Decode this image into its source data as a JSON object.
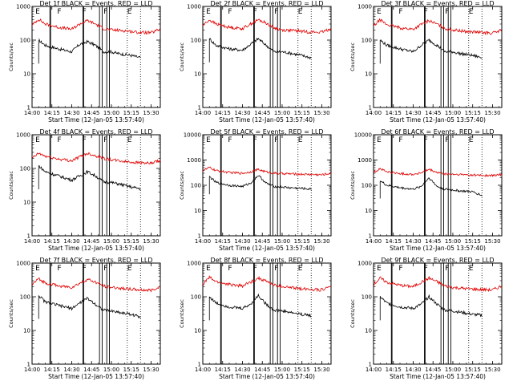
{
  "figure": {
    "xlabel": "Start Time (12-Jan-05 13:57:40)",
    "ylabel": "Counts/sec",
    "colors": {
      "events": "#000000",
      "lld": "#e00000"
    }
  },
  "chart_data": [
    {
      "type": "line",
      "title": "Det 1f BLACK = Events, RED = LLD",
      "ylim": [
        1,
        1000
      ],
      "yscale": "log",
      "yticks": [
        1,
        10,
        100,
        1000
      ],
      "ytick_labels": [
        "1",
        "10",
        "100",
        "1000"
      ],
      "xlim": [
        "14:00",
        "15:37"
      ],
      "xticks": [
        "14:00",
        "14:15",
        "14:30",
        "14:45",
        "15:00",
        "15:15",
        "15:30"
      ],
      "markers": [
        "E",
        "F",
        "F",
        "F",
        "E"
      ],
      "series": [
        {
          "color": "#000000",
          "x": [
            "14:05",
            "14:10",
            "14:20",
            "14:30",
            "14:36",
            "14:42",
            "14:48",
            "14:54",
            "15:00",
            "15:05",
            "15:15",
            "15:22"
          ],
          "values": [
            100,
            70,
            55,
            45,
            75,
            90,
            70,
            45,
            45,
            40,
            35,
            30
          ]
        },
        {
          "color": "#e00000",
          "x": [
            "14:00",
            "14:05",
            "14:10",
            "14:20",
            "14:30",
            "14:36",
            "14:42",
            "14:48",
            "14:54",
            "15:00",
            "15:10",
            "15:20",
            "15:30",
            "15:37"
          ],
          "values": [
            280,
            420,
            300,
            240,
            210,
            300,
            380,
            300,
            220,
            200,
            190,
            170,
            165,
            210
          ]
        }
      ]
    },
    {
      "type": "line",
      "title": "Det 2f BLACK = Events, RED = LLD",
      "ylim": [
        1,
        1000
      ],
      "yscale": "log",
      "yticks": [
        1,
        10,
        100,
        1000
      ],
      "ytick_labels": [
        "1",
        "10",
        "100",
        "1000"
      ],
      "xlim": [
        "14:00",
        "15:37"
      ],
      "xticks": [
        "14:00",
        "14:15",
        "14:30",
        "14:45",
        "15:00",
        "15:15",
        "15:30"
      ],
      "markers": [
        "E",
        "F",
        "F",
        "F",
        "E"
      ],
      "series": [
        {
          "color": "#000000",
          "x": [
            "14:05",
            "14:10",
            "14:20",
            "14:30",
            "14:36",
            "14:42",
            "14:48",
            "14:54",
            "15:00",
            "15:05",
            "15:15",
            "15:22"
          ],
          "values": [
            110,
            70,
            55,
            50,
            75,
            110,
            70,
            45,
            45,
            42,
            35,
            30
          ]
        },
        {
          "color": "#e00000",
          "x": [
            "14:00",
            "14:05",
            "14:10",
            "14:20",
            "14:30",
            "14:36",
            "14:42",
            "14:48",
            "14:54",
            "15:00",
            "15:10",
            "15:20",
            "15:30",
            "15:37"
          ],
          "values": [
            270,
            400,
            300,
            240,
            220,
            300,
            400,
            320,
            230,
            200,
            190,
            175,
            170,
            220
          ]
        }
      ]
    },
    {
      "type": "line",
      "title": "Det 3f BLACK = Events, RED = LLD",
      "ylim": [
        1,
        1000
      ],
      "yscale": "log",
      "yticks": [
        1,
        10,
        100,
        1000
      ],
      "ytick_labels": [
        "1",
        "10",
        "100",
        "1000"
      ],
      "xlim": [
        "14:00",
        "15:37"
      ],
      "xticks": [
        "14:00",
        "14:15",
        "14:30",
        "14:45",
        "15:00",
        "15:15",
        "15:30"
      ],
      "markers": [
        "E",
        "F",
        "F",
        "F",
        "E"
      ],
      "series": [
        {
          "color": "#000000",
          "x": [
            "14:05",
            "14:10",
            "14:20",
            "14:30",
            "14:36",
            "14:42",
            "14:48",
            "14:54",
            "15:00",
            "15:05",
            "15:15",
            "15:22"
          ],
          "values": [
            100,
            70,
            55,
            45,
            70,
            100,
            70,
            45,
            45,
            40,
            35,
            30
          ]
        },
        {
          "color": "#e00000",
          "x": [
            "14:00",
            "14:05",
            "14:10",
            "14:20",
            "14:30",
            "14:36",
            "14:42",
            "14:48",
            "14:54",
            "15:00",
            "15:10",
            "15:20",
            "15:30",
            "15:37"
          ],
          "values": [
            260,
            400,
            290,
            230,
            210,
            290,
            380,
            300,
            220,
            200,
            180,
            170,
            160,
            200
          ]
        }
      ]
    },
    {
      "type": "line",
      "title": "Det 4f BLACK = Events, RED = LLD",
      "ylim": [
        1,
        1000
      ],
      "yscale": "log",
      "yticks": [
        1,
        10,
        100,
        1000
      ],
      "ytick_labels": [
        "1",
        "10",
        "100",
        "1000"
      ],
      "xlim": [
        "14:00",
        "15:37"
      ],
      "xticks": [
        "14:00",
        "14:15",
        "14:30",
        "14:45",
        "15:00",
        "15:15",
        "15:30"
      ],
      "markers": [
        "E",
        "F",
        "F",
        "F",
        "E"
      ],
      "series": [
        {
          "color": "#000000",
          "x": [
            "14:05",
            "14:10",
            "14:20",
            "14:30",
            "14:36",
            "14:42",
            "14:48",
            "14:54",
            "15:00",
            "15:05",
            "15:15",
            "15:22"
          ],
          "values": [
            120,
            80,
            60,
            45,
            60,
            80,
            60,
            40,
            38,
            35,
            28,
            25
          ]
        },
        {
          "color": "#e00000",
          "x": [
            "14:00",
            "14:05",
            "14:10",
            "14:20",
            "14:30",
            "14:36",
            "14:42",
            "14:48",
            "14:54",
            "15:00",
            "15:10",
            "15:20",
            "15:30",
            "15:37"
          ],
          "values": [
            200,
            280,
            230,
            190,
            170,
            220,
            280,
            240,
            200,
            180,
            160,
            150,
            140,
            170
          ]
        }
      ]
    },
    {
      "type": "line",
      "title": "Det 5f BLACK = Events, RED = LLD",
      "ylim": [
        1,
        10000
      ],
      "yscale": "log",
      "yticks": [
        1,
        10,
        100,
        1000,
        10000
      ],
      "ytick_labels": [
        "1",
        "10",
        "100",
        "1000",
        "10000"
      ],
      "xlim": [
        "14:00",
        "15:37"
      ],
      "xticks": [
        "14:00",
        "14:15",
        "14:30",
        "14:45",
        "15:00",
        "15:15",
        "15:30"
      ],
      "markers": [
        "E",
        "F",
        "F",
        "F",
        "E"
      ],
      "series": [
        {
          "color": "#000000",
          "x": [
            "14:05",
            "14:10",
            "14:20",
            "14:30",
            "14:36",
            "14:42",
            "14:48",
            "14:54",
            "15:00",
            "15:05",
            "15:15",
            "15:22"
          ],
          "values": [
            220,
            130,
            100,
            90,
            120,
            250,
            120,
            90,
            85,
            80,
            75,
            70
          ]
        },
        {
          "color": "#e00000",
          "x": [
            "14:00",
            "14:05",
            "14:10",
            "14:20",
            "14:30",
            "14:36",
            "14:42",
            "14:48",
            "14:54",
            "15:00",
            "15:10",
            "15:20",
            "15:30",
            "15:37"
          ],
          "values": [
            380,
            500,
            380,
            320,
            300,
            340,
            420,
            340,
            300,
            290,
            280,
            270,
            260,
            300
          ]
        }
      ]
    },
    {
      "type": "line",
      "title": "Det 6f BLACK = Events, RED = LLD",
      "ylim": [
        1,
        10000
      ],
      "yscale": "log",
      "yticks": [
        1,
        10,
        100,
        1000,
        10000
      ],
      "ytick_labels": [
        "1",
        "10",
        "100",
        "1000",
        "10000"
      ],
      "xlim": [
        "14:00",
        "15:37"
      ],
      "xticks": [
        "14:00",
        "14:15",
        "14:30",
        "14:45",
        "15:00",
        "15:15",
        "15:30"
      ],
      "markers": [
        "E",
        "F",
        "F",
        "F",
        "E"
      ],
      "series": [
        {
          "color": "#000000",
          "x": [
            "14:05",
            "14:10",
            "14:20",
            "14:30",
            "14:36",
            "14:42",
            "14:48",
            "14:54",
            "15:00",
            "15:05",
            "15:15",
            "15:22"
          ],
          "values": [
            150,
            100,
            80,
            70,
            90,
            200,
            90,
            70,
            65,
            60,
            55,
            40
          ]
        },
        {
          "color": "#e00000",
          "x": [
            "14:00",
            "14:05",
            "14:10",
            "14:20",
            "14:30",
            "14:36",
            "14:42",
            "14:48",
            "14:54",
            "15:00",
            "15:10",
            "15:20",
            "15:30",
            "15:37"
          ],
          "values": [
            320,
            460,
            340,
            290,
            270,
            310,
            420,
            320,
            280,
            270,
            260,
            250,
            240,
            270
          ]
        }
      ]
    },
    {
      "type": "line",
      "title": "Det 7f BLACK = Events, RED = LLD",
      "ylim": [
        1,
        1000
      ],
      "yscale": "log",
      "yticks": [
        1,
        10,
        100,
        1000
      ],
      "ytick_labels": [
        "1",
        "10",
        "100",
        "1000"
      ],
      "xlim": [
        "14:00",
        "15:37"
      ],
      "xticks": [
        "14:00",
        "14:15",
        "14:30",
        "14:45",
        "15:00",
        "15:15",
        "15:30"
      ],
      "markers": [
        "E",
        "F",
        "F",
        "F",
        "E"
      ],
      "series": [
        {
          "color": "#000000",
          "x": [
            "14:05",
            "14:10",
            "14:20",
            "14:30",
            "14:36",
            "14:42",
            "14:48",
            "14:54",
            "15:00",
            "15:05",
            "15:15",
            "15:22"
          ],
          "values": [
            110,
            70,
            55,
            45,
            65,
            90,
            60,
            40,
            38,
            35,
            30,
            25
          ]
        },
        {
          "color": "#e00000",
          "x": [
            "14:00",
            "14:05",
            "14:10",
            "14:20",
            "14:30",
            "14:36",
            "14:42",
            "14:48",
            "14:54",
            "15:00",
            "15:10",
            "15:20",
            "15:30",
            "15:37"
          ],
          "values": [
            230,
            340,
            260,
            210,
            190,
            250,
            330,
            270,
            210,
            190,
            175,
            160,
            155,
            200
          ]
        }
      ]
    },
    {
      "type": "line",
      "title": "Det 8f BLACK = Events, RED = LLD",
      "ylim": [
        1,
        1000
      ],
      "yscale": "log",
      "yticks": [
        1,
        10,
        100,
        1000
      ],
      "ytick_labels": [
        "1",
        "10",
        "100",
        "1000"
      ],
      "xlim": [
        "14:00",
        "15:37"
      ],
      "xticks": [
        "14:00",
        "14:15",
        "14:30",
        "14:45",
        "15:00",
        "15:15",
        "15:30"
      ],
      "markers": [
        "E",
        "F",
        "F",
        "F",
        "E"
      ],
      "series": [
        {
          "color": "#000000",
          "x": [
            "14:05",
            "14:10",
            "14:20",
            "14:30",
            "14:36",
            "14:42",
            "14:48",
            "14:54",
            "15:00",
            "15:05",
            "15:15",
            "15:22"
          ],
          "values": [
            100,
            65,
            50,
            45,
            60,
            110,
            60,
            40,
            38,
            35,
            30,
            28
          ]
        },
        {
          "color": "#e00000",
          "x": [
            "14:00",
            "14:05",
            "14:10",
            "14:20",
            "14:30",
            "14:36",
            "14:42",
            "14:48",
            "14:54",
            "15:00",
            "15:10",
            "15:20",
            "15:30",
            "15:37"
          ],
          "values": [
            230,
            380,
            280,
            230,
            210,
            270,
            360,
            290,
            220,
            200,
            180,
            170,
            160,
            210
          ]
        }
      ]
    },
    {
      "type": "line",
      "title": "Det 9f BLACK = Events, RED = LLD",
      "ylim": [
        1,
        1000
      ],
      "yscale": "log",
      "yticks": [
        1,
        10,
        100,
        1000
      ],
      "ytick_labels": [
        "1",
        "10",
        "100",
        "1000"
      ],
      "xlim": [
        "14:00",
        "15:37"
      ],
      "xticks": [
        "14:00",
        "14:15",
        "14:30",
        "14:45",
        "15:00",
        "15:15",
        "15:30"
      ],
      "markers": [
        "E",
        "F",
        "F",
        "F",
        "E"
      ],
      "series": [
        {
          "color": "#000000",
          "x": [
            "14:05",
            "14:10",
            "14:20",
            "14:30",
            "14:36",
            "14:42",
            "14:48",
            "14:54",
            "15:00",
            "15:05",
            "15:15",
            "15:22"
          ],
          "values": [
            100,
            65,
            50,
            45,
            60,
            100,
            60,
            40,
            38,
            35,
            30,
            28
          ]
        },
        {
          "color": "#e00000",
          "x": [
            "14:00",
            "14:05",
            "14:10",
            "14:20",
            "14:30",
            "14:36",
            "14:42",
            "14:48",
            "14:54",
            "15:00",
            "15:10",
            "15:20",
            "15:30",
            "15:37"
          ],
          "values": [
            230,
            360,
            270,
            220,
            200,
            270,
            360,
            280,
            210,
            190,
            175,
            165,
            160,
            210
          ]
        }
      ]
    }
  ]
}
